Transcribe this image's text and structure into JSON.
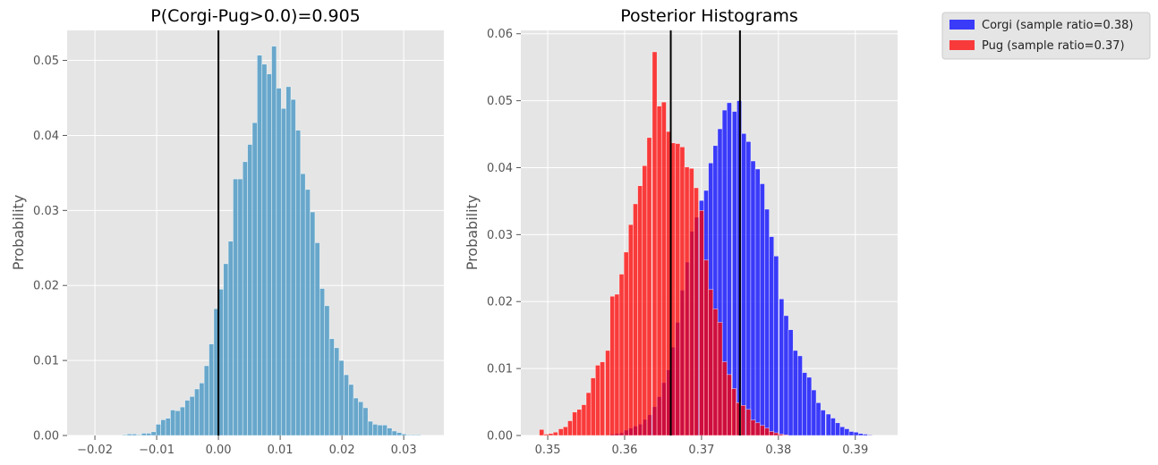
{
  "chart_data": [
    {
      "type": "bar",
      "title": "P(Corgi-Pug>0.0)=0.905",
      "xlabel": "",
      "ylabel": "Probability",
      "xlim": [
        -0.0245,
        0.0365
      ],
      "ylim": [
        0,
        0.054
      ],
      "xticks": [
        -0.02,
        -0.01,
        0.0,
        0.01,
        0.02,
        0.03
      ],
      "xtick_labels": [
        "−0.02",
        "−0.01",
        "0.00",
        "0.01",
        "0.02",
        "0.03"
      ],
      "yticks": [
        0,
        0.01,
        0.02,
        0.03,
        0.04,
        0.05
      ],
      "ytick_labels": [
        "0.00",
        "0.01",
        "0.02",
        "0.03",
        "0.04",
        "0.05"
      ],
      "grid": true,
      "bin_width": 0.000778,
      "series": [
        {
          "color": "#5aa0c8",
          "bins_start": [
            -0.01557,
            -0.01479,
            -0.01401,
            -0.01323,
            -0.01245,
            -0.01167,
            -0.01089,
            -0.01011,
            -0.00933,
            -0.00855,
            -0.00777,
            -0.00699,
            -0.00621,
            -0.00543,
            -0.00465,
            -0.00387,
            -0.00309,
            -0.00231,
            -0.00153,
            -0.00075,
            3e-05,
            0.00081,
            0.00159,
            0.00237,
            0.00315,
            0.00393,
            0.00471,
            0.00549,
            0.00627,
            0.00705,
            0.00783,
            0.00861,
            0.00939,
            0.01017,
            0.01095,
            0.01173,
            0.01251,
            0.01329,
            0.01407,
            0.01485,
            0.01563,
            0.01641,
            0.01719,
            0.01797,
            0.01875,
            0.01953,
            0.02031,
            0.02109,
            0.02187,
            0.02265,
            0.02343,
            0.02421,
            0.02499,
            0.02577,
            0.02655,
            0.02733,
            0.02811,
            0.02889,
            0.02967,
            0.03045,
            0.03123,
            0.03201
          ],
          "values": [
            0.0001,
            0.0002,
            0.0002,
            0.0001,
            0.0003,
            0.0003,
            0.0005,
            0.0015,
            0.0021,
            0.0023,
            0.0034,
            0.0033,
            0.0038,
            0.0047,
            0.0052,
            0.0062,
            0.007,
            0.0093,
            0.0122,
            0.0169,
            0.0195,
            0.0229,
            0.0259,
            0.0342,
            0.0342,
            0.0365,
            0.0388,
            0.0417,
            0.0507,
            0.0495,
            0.0482,
            0.0519,
            0.0463,
            0.0436,
            0.0465,
            0.0448,
            0.0407,
            0.0349,
            0.0328,
            0.0298,
            0.0257,
            0.0196,
            0.0173,
            0.0129,
            0.0117,
            0.01,
            0.0081,
            0.0068,
            0.005,
            0.0045,
            0.0037,
            0.0019,
            0.0015,
            0.0014,
            0.0014,
            0.001,
            0.0006,
            0.0004,
            0.0002,
            0.0001,
            0.0001,
            0.0001
          ]
        }
      ],
      "vlines": [
        0.0
      ]
    },
    {
      "type": "bar",
      "title": "Posterior Histograms",
      "xlabel": "",
      "ylabel": "Probability",
      "xlim": [
        0.3465,
        0.3955
      ],
      "ylim": [
        0,
        0.0605
      ],
      "xticks": [
        0.35,
        0.36,
        0.37,
        0.38,
        0.39
      ],
      "xtick_labels": [
        "0.35",
        "0.36",
        "0.37",
        "0.38",
        "0.39"
      ],
      "yticks": [
        0,
        0.01,
        0.02,
        0.03,
        0.04,
        0.05,
        0.06
      ],
      "ytick_labels": [
        "0.00",
        "0.01",
        "0.02",
        "0.03",
        "0.04",
        "0.05",
        "0.06"
      ],
      "grid": true,
      "bin_width": 0.000611,
      "legend_position": "outside top-right",
      "series": [
        {
          "name": "Corgi (sample ratio=0.38)",
          "color": "#0000ff",
          "alpha": 0.75,
          "bins_start": [
            0.3581,
            0.3587,
            0.3593,
            0.3599,
            0.3605,
            0.3611,
            0.3618,
            0.3624,
            0.363,
            0.3636,
            0.3642,
            0.3648,
            0.3654,
            0.366,
            0.3666,
            0.3672,
            0.3679,
            0.3685,
            0.3691,
            0.3697,
            0.3703,
            0.3709,
            0.3715,
            0.3721,
            0.3727,
            0.3733,
            0.374,
            0.3746,
            0.3752,
            0.3758,
            0.3764,
            0.377,
            0.3776,
            0.3782,
            0.3788,
            0.3794,
            0.3801,
            0.3807,
            0.3813,
            0.3819,
            0.3825,
            0.3831,
            0.3837,
            0.3843,
            0.3849,
            0.3855,
            0.3862,
            0.3868,
            0.3874,
            0.388,
            0.3886,
            0.3892,
            0.3898,
            0.3904,
            0.391,
            0.3916
          ],
          "values": [
            0.0002,
            0.0003,
            0.0004,
            0.0008,
            0.0011,
            0.0014,
            0.0017,
            0.0024,
            0.0031,
            0.0043,
            0.0058,
            0.0079,
            0.0098,
            0.0132,
            0.0169,
            0.0217,
            0.0259,
            0.0305,
            0.0326,
            0.0351,
            0.0366,
            0.0407,
            0.0433,
            0.0458,
            0.0486,
            0.0497,
            0.0484,
            0.05,
            0.0451,
            0.0439,
            0.041,
            0.0398,
            0.0376,
            0.0338,
            0.0297,
            0.0268,
            0.0204,
            0.0179,
            0.0158,
            0.0127,
            0.0119,
            0.0094,
            0.0087,
            0.0068,
            0.0049,
            0.0038,
            0.0032,
            0.0026,
            0.0019,
            0.0013,
            0.001,
            0.0006,
            0.0005,
            0.0003,
            0.0002,
            0.0001
          ]
        },
        {
          "name": "Pug (sample ratio=0.37)",
          "color": "#ff0000",
          "alpha": 0.75,
          "bins_start": [
            0.3489,
            0.3495,
            0.3501,
            0.3507,
            0.3514,
            0.352,
            0.3526,
            0.3532,
            0.3538,
            0.3544,
            0.355,
            0.3556,
            0.3562,
            0.3568,
            0.3575,
            0.3581,
            0.3587,
            0.3593,
            0.3599,
            0.3605,
            0.3611,
            0.3617,
            0.3623,
            0.3629,
            0.3636,
            0.3642,
            0.3648,
            0.3654,
            0.366,
            0.3666,
            0.3672,
            0.3678,
            0.3684,
            0.369,
            0.3697,
            0.3703,
            0.3709,
            0.3715,
            0.3721,
            0.3727,
            0.3733,
            0.3739,
            0.3745,
            0.3751,
            0.3758,
            0.3764,
            0.377,
            0.3776,
            0.3782,
            0.3788,
            0.3794,
            0.38,
            0.3806
          ],
          "values": [
            0.0009,
            0.0002,
            0.0003,
            0.0005,
            0.001,
            0.0013,
            0.0022,
            0.0035,
            0.0039,
            0.0046,
            0.0064,
            0.0086,
            0.0105,
            0.011,
            0.0127,
            0.0208,
            0.0211,
            0.0241,
            0.0274,
            0.0315,
            0.0346,
            0.0373,
            0.0403,
            0.0445,
            0.0573,
            0.0492,
            0.0498,
            0.0454,
            0.0437,
            0.0436,
            0.0431,
            0.0401,
            0.0399,
            0.037,
            0.0336,
            0.0262,
            0.0218,
            0.0189,
            0.0169,
            0.011,
            0.0091,
            0.007,
            0.0049,
            0.0045,
            0.0039,
            0.0023,
            0.0019,
            0.0015,
            0.0011,
            0.0006,
            0.0004,
            0.0002,
            0.0001
          ]
        }
      ],
      "vlines": [
        0.366,
        0.375
      ]
    }
  ]
}
